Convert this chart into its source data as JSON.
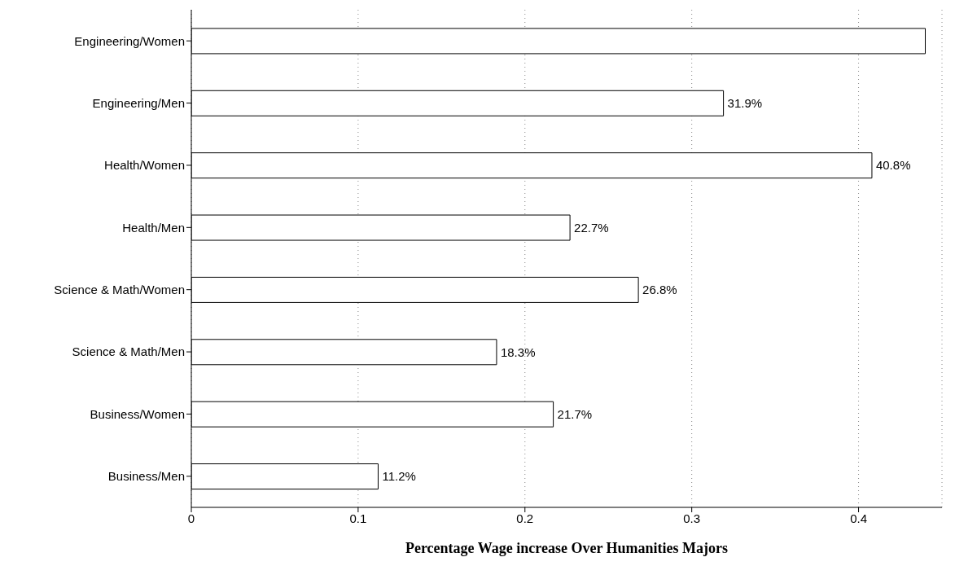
{
  "chart_data": {
    "type": "bar",
    "orientation": "horizontal",
    "xlabel": "Percentage Wage increase Over Humanities Majors",
    "categories": [
      "Engineering/Women",
      "Engineering/Men",
      "Health/Women",
      "Health/Men",
      "Science & Math/Women",
      "Science & Math/Men",
      "Business/Women",
      "Business/Men"
    ],
    "values": [
      0.44,
      0.319,
      0.408,
      0.227,
      0.268,
      0.183,
      0.217,
      0.112
    ],
    "value_labels": [
      null,
      "31.9%",
      "40.8%",
      "22.7%",
      "26.8%",
      "18.3%",
      "21.7%",
      "11.2%"
    ],
    "color": "#ffffff",
    "xlim": [
      0,
      0.45
    ],
    "xticks": [
      0,
      0.1,
      0.2,
      0.3,
      0.4
    ],
    "grid": "x",
    "line_style": "dotted"
  }
}
